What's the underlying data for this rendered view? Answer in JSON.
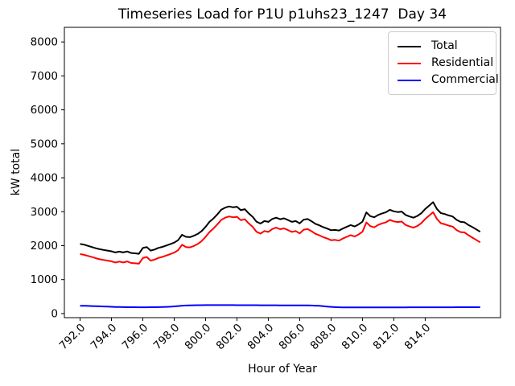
{
  "chart_data": {
    "type": "line",
    "title": "Timeseries Load for P1U p1uhs23_1247  Day 34",
    "xlabel": "Hour of Year",
    "ylabel": "kW total",
    "xlim": [
      791.0,
      818.8
    ],
    "ylim": [
      -120,
      8430
    ],
    "grid": false,
    "legend_position": "upper right",
    "x_ticks": [
      792,
      794,
      796,
      798,
      800,
      802,
      804,
      806,
      808,
      810,
      812,
      814
    ],
    "x_tick_labels": [
      "792.0",
      "794.0",
      "796.0",
      "798.0",
      "800.0",
      "802.0",
      "804.0",
      "806.0",
      "808.0",
      "810.0",
      "812.0",
      "814.0"
    ],
    "y_ticks": [
      0,
      1000,
      2000,
      3000,
      4000,
      5000,
      6000,
      7000,
      8000
    ],
    "y_tick_labels": [
      "0",
      "1000",
      "2000",
      "3000",
      "4000",
      "5000",
      "6000",
      "7000",
      "8000"
    ],
    "x": [
      792,
      792.25,
      792.5,
      792.75,
      793,
      793.25,
      793.5,
      793.75,
      794,
      794.25,
      794.5,
      794.75,
      795,
      795.25,
      795.5,
      795.75,
      796,
      796.25,
      796.5,
      796.75,
      797,
      797.25,
      797.5,
      797.75,
      798,
      798.25,
      798.5,
      798.75,
      799,
      799.25,
      799.5,
      799.75,
      800,
      800.25,
      800.5,
      800.75,
      801,
      801.25,
      801.5,
      801.75,
      802,
      802.25,
      802.5,
      802.75,
      803,
      803.25,
      803.5,
      803.75,
      804,
      804.25,
      804.5,
      804.75,
      805,
      805.25,
      805.5,
      805.75,
      806,
      806.25,
      806.5,
      806.75,
      807,
      807.25,
      807.5,
      807.75,
      808,
      808.25,
      808.5,
      808.75,
      809,
      809.25,
      809.5,
      809.75,
      810,
      810.25,
      810.5,
      810.75,
      811,
      811.25,
      811.5,
      811.75,
      812,
      812.25,
      812.5,
      812.75,
      813,
      813.25,
      813.5,
      813.75,
      814,
      814.25,
      814.5,
      814.75,
      815,
      815.25,
      815.5,
      815.75,
      816,
      816.25,
      816.5,
      816.75,
      817,
      817.25,
      817.5
    ],
    "series": [
      {
        "name": "Total",
        "color": "#000000",
        "values": [
          2050,
          2030,
          1995,
          1960,
          1925,
          1895,
          1875,
          1855,
          1835,
          1800,
          1825,
          1800,
          1830,
          1785,
          1775,
          1760,
          1930,
          1960,
          1855,
          1885,
          1935,
          1965,
          2005,
          2045,
          2090,
          2160,
          2320,
          2260,
          2250,
          2290,
          2345,
          2430,
          2555,
          2700,
          2800,
          2920,
          3060,
          3120,
          3155,
          3130,
          3145,
          3045,
          3075,
          2950,
          2850,
          2705,
          2650,
          2725,
          2700,
          2785,
          2825,
          2780,
          2805,
          2755,
          2700,
          2725,
          2655,
          2765,
          2785,
          2720,
          2645,
          2600,
          2545,
          2505,
          2455,
          2465,
          2445,
          2505,
          2555,
          2605,
          2565,
          2625,
          2705,
          2980,
          2870,
          2835,
          2905,
          2950,
          2985,
          3055,
          3010,
          2990,
          3005,
          2905,
          2860,
          2825,
          2875,
          2955,
          3080,
          3180,
          3280,
          3080,
          2960,
          2930,
          2890,
          2860,
          2760,
          2700,
          2690,
          2610,
          2550,
          2480,
          2410
        ]
      },
      {
        "name": "Residential",
        "color": "#ff0000",
        "values": [
          1755,
          1730,
          1700,
          1665,
          1630,
          1600,
          1580,
          1560,
          1540,
          1505,
          1530,
          1505,
          1535,
          1490,
          1480,
          1470,
          1635,
          1665,
          1560,
          1590,
          1640,
          1670,
          1710,
          1750,
          1795,
          1865,
          2025,
          1960,
          1950,
          1990,
          2050,
          2135,
          2260,
          2400,
          2505,
          2625,
          2760,
          2825,
          2860,
          2835,
          2850,
          2750,
          2780,
          2655,
          2555,
          2410,
          2355,
          2430,
          2405,
          2490,
          2530,
          2485,
          2510,
          2460,
          2405,
          2430,
          2360,
          2470,
          2490,
          2425,
          2350,
          2305,
          2250,
          2210,
          2160,
          2170,
          2150,
          2210,
          2260,
          2310,
          2270,
          2330,
          2410,
          2685,
          2575,
          2540,
          2610,
          2655,
          2690,
          2760,
          2715,
          2695,
          2710,
          2610,
          2565,
          2530,
          2580,
          2660,
          2785,
          2885,
          2985,
          2785,
          2660,
          2630,
          2590,
          2560,
          2460,
          2400,
          2390,
          2310,
          2240,
          2170,
          2100
        ]
      },
      {
        "name": "Commercial",
        "color": "#0000ff",
        "values": [
          230,
          228,
          225,
          222,
          218,
          214,
          210,
          206,
          200,
          196,
          193,
          191,
          189,
          188,
          187,
          186,
          186,
          186,
          187,
          188,
          190,
          193,
          197,
          203,
          212,
          222,
          232,
          238,
          242,
          245,
          247,
          248,
          249,
          250,
          250,
          250,
          250,
          250,
          249,
          249,
          248,
          248,
          247,
          247,
          246,
          246,
          245,
          245,
          245,
          244,
          244,
          243,
          243,
          242,
          242,
          241,
          241,
          240,
          239,
          237,
          233,
          227,
          218,
          208,
          198,
          191,
          186,
          183,
          181,
          180,
          180,
          180,
          181,
          182,
          182,
          182,
          183,
          183,
          183,
          184,
          184,
          184,
          184,
          184,
          185,
          185,
          185,
          185,
          185,
          186,
          186,
          186,
          186,
          186,
          186,
          186,
          187,
          187,
          187,
          187,
          188,
          188,
          188
        ]
      }
    ]
  }
}
